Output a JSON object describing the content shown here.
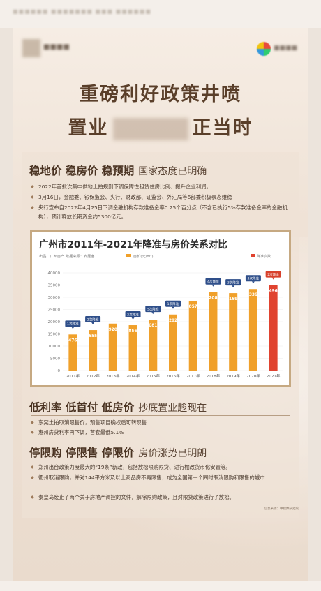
{
  "headline": {
    "line1": "重磅利好政策井喷",
    "line2_prefix": "置业",
    "line2_suffix": "正当时"
  },
  "section1": {
    "title": "稳地价 稳房价 稳预期",
    "subtitle": "国家态度已明确",
    "bullets": [
      "2022年首批次集中供地土拍规则下调保障性租赁住房比例、提升企业利润。",
      "3月16日，金融委、银保监会、央行、财政部、证监会、外汇局等6部委积极表态维稳",
      "央行宣布自2022年4月25日下调金融机构存款准备金率0.25个百分点（不含已执行5%存款准备金率的金融机构），预计释放长期资金约5300亿元。"
    ]
  },
  "section2": {
    "title": "低利率 低首付 低房价",
    "subtitle": "抄底置业趁现在",
    "bullets": [
      "东莞土拍取消限售价，预售项目确权后可转现售",
      "惠州房贷利率再下调，首套最低5.1%"
    ]
  },
  "section3": {
    "title": "停限购 停限售 停限价",
    "subtitle": "房价涨势已明朗",
    "bullets": [
      "郑州出台政策力度最大的“19条”新政，包括放松限购限贷、进行棚改货币化安置等。",
      "衢州取消限购，并对144平方米及以上商品房不再限售，成为全国第一个同时取消限购和限售的城市",
      "秦皇岛废止了两个关于房地产调控的文件，解除限购政策，且对限贷政策进行了放松。"
    ],
    "source_note": "信息来源：中指数研究院"
  },
  "chart_data": {
    "type": "bar",
    "title": "广州市2011年-2021年降准与房价关系对比",
    "meta": "出品：广州房产   数据来源：安居客",
    "legend_price": "房价(元/m²)",
    "legend_cut": "降准次数",
    "categories": [
      "2011年",
      "2012年",
      "2013年",
      "2014年",
      "2015年",
      "2016年",
      "2017年",
      "2018年",
      "2019年",
      "2020年",
      "2021年"
    ],
    "values": [
      14762,
      16555,
      19208,
      18564,
      20816,
      22926,
      28578,
      32088,
      31692,
      33364,
      34962
    ],
    "rrr_cuts": [
      "1次降准",
      "2次降准",
      "",
      "2次降准",
      "5次降准",
      "1次降准",
      "",
      "4次降准",
      "3次降准",
      "3次降准",
      "2次降准"
    ],
    "highlight_last": true,
    "ylim": [
      0,
      40000
    ],
    "yticks": [
      0,
      5000,
      10000,
      15000,
      20000,
      25000,
      30000,
      35000,
      40000
    ],
    "colors": {
      "bar": "#f0a02a",
      "bar_last": "#e0432f",
      "cut_badge": "#2f4f8a",
      "cut_badge_last": "#d8412c",
      "title": "#2b2b2b"
    }
  }
}
